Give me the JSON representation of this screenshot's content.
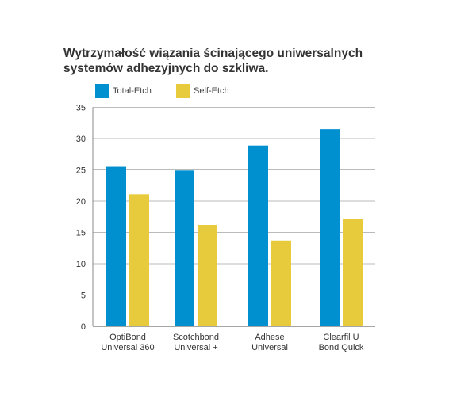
{
  "chart_data": {
    "type": "bar",
    "title": "Wytrzymałość wiązania ścinającego uniwersalnych systemów adhezyjnych do szkliwa.",
    "categories": [
      [
        "OptiBond",
        "Universal 360"
      ],
      [
        "Scotchbond",
        "Universal +"
      ],
      [
        "Adhese",
        "Universal"
      ],
      [
        "Clearfil U",
        "Bond Quick"
      ]
    ],
    "series": [
      {
        "name": "Total-Etch",
        "color": "#0090d0",
        "values": [
          25.5,
          24.9,
          28.9,
          31.5
        ]
      },
      {
        "name": "Self-Etch",
        "color": "#e8cb3c",
        "values": [
          21.1,
          16.2,
          13.7,
          17.2
        ]
      }
    ],
    "ylim": [
      0,
      35
    ],
    "yticks": [
      0,
      5,
      10,
      15,
      20,
      25,
      30,
      35
    ],
    "grid": true,
    "legend_position": "top-left"
  }
}
